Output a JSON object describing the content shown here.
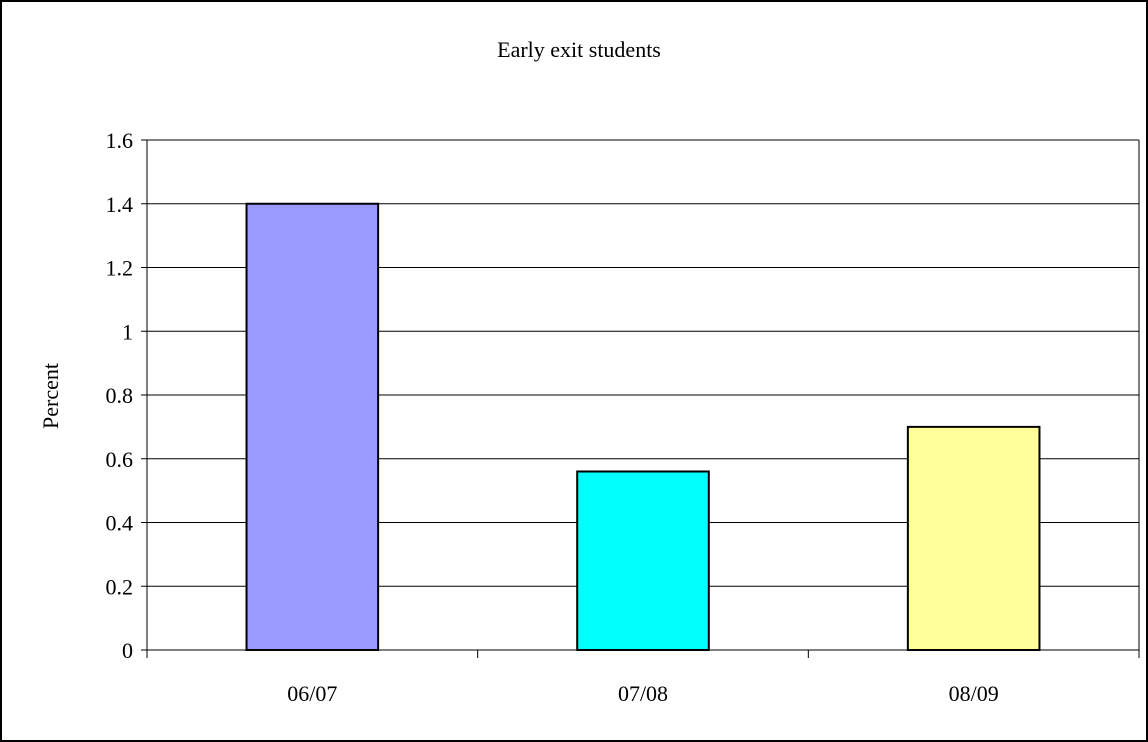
{
  "chart_data": {
    "type": "bar",
    "title": "Early exit students",
    "xlabel": "",
    "ylabel": "Percent",
    "categories": [
      "06/07",
      "07/08",
      "08/09"
    ],
    "values": [
      1.4,
      0.56,
      0.7
    ],
    "bar_colors": [
      "#9999ff",
      "#00ffff",
      "#ffff99"
    ],
    "ylim": [
      0,
      1.6
    ],
    "yticks": [
      0,
      0.2,
      0.4,
      0.6,
      0.8,
      1,
      1.2,
      1.4,
      1.6
    ],
    "grid": true,
    "legend": "none"
  }
}
